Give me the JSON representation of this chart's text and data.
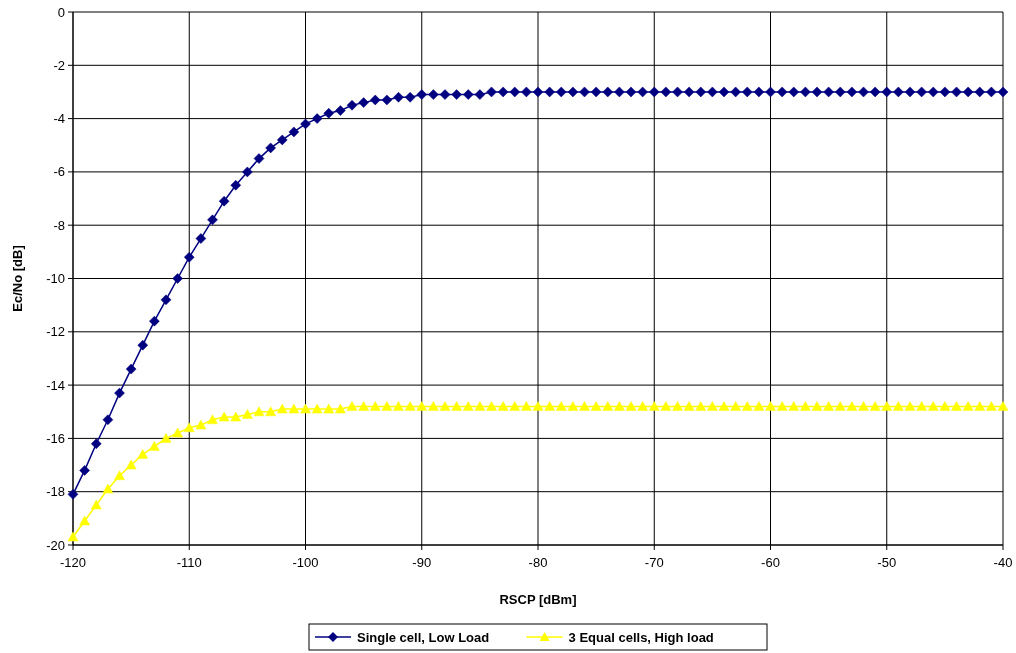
{
  "chart_data": {
    "type": "line",
    "xlabel": "RSCP [dBm]",
    "ylabel": "Ec/No [dB]",
    "x": [
      -120,
      -119,
      -118,
      -117,
      -116,
      -115,
      -114,
      -113,
      -112,
      -111,
      -110,
      -109,
      -108,
      -107,
      -106,
      -105,
      -104,
      -103,
      -102,
      -101,
      -100,
      -99,
      -98,
      -97,
      -96,
      -95,
      -94,
      -93,
      -92,
      -91,
      -90,
      -89,
      -88,
      -87,
      -86,
      -85,
      -84,
      -83,
      -82,
      -81,
      -80,
      -79,
      -78,
      -77,
      -76,
      -75,
      -74,
      -73,
      -72,
      -71,
      -70,
      -69,
      -68,
      -67,
      -66,
      -65,
      -64,
      -63,
      -62,
      -61,
      -60,
      -59,
      -58,
      -57,
      -56,
      -55,
      -54,
      -53,
      -52,
      -51,
      -50,
      -49,
      -48,
      -47,
      -46,
      -45,
      -44,
      -43,
      -42,
      -41,
      -40
    ],
    "series": [
      {
        "name": "Single cell, Low Load",
        "color": "#000080",
        "marker": "diamond",
        "values": [
          -18.1,
          -17.2,
          -16.2,
          -15.3,
          -14.3,
          -13.4,
          -12.5,
          -11.6,
          -10.8,
          -10.0,
          -9.2,
          -8.5,
          -7.8,
          -7.1,
          -6.5,
          -6.0,
          -5.5,
          -5.1,
          -4.8,
          -4.5,
          -4.2,
          -4.0,
          -3.8,
          -3.7,
          -3.5,
          -3.4,
          -3.3,
          -3.3,
          -3.2,
          -3.2,
          -3.1,
          -3.1,
          -3.1,
          -3.1,
          -3.1,
          -3.1,
          -3,
          -3,
          -3,
          -3,
          -3,
          -3,
          -3,
          -3,
          -3,
          -3,
          -3,
          -3,
          -3,
          -3,
          -3,
          -3,
          -3,
          -3,
          -3,
          -3,
          -3,
          -3,
          -3,
          -3,
          -3,
          -3,
          -3,
          -3,
          -3,
          -3,
          -3,
          -3,
          -3,
          -3,
          -3,
          -3,
          -3,
          -3,
          -3,
          -3,
          -3,
          -3,
          -3,
          -3,
          -3
        ]
      },
      {
        "name": "3 Equal cells, High load",
        "color": "#ffff00",
        "marker": "triangle",
        "values": [
          -19.7,
          -19.1,
          -18.5,
          -17.9,
          -17.4,
          -17.0,
          -16.6,
          -16.3,
          -16.0,
          -15.8,
          -15.6,
          -15.5,
          -15.3,
          -15.2,
          -15.2,
          -15.1,
          -15.0,
          -15.0,
          -14.9,
          -14.9,
          -14.9,
          -14.9,
          -14.9,
          -14.9,
          -14.8,
          -14.8,
          -14.8,
          -14.8,
          -14.8,
          -14.8,
          -14.8,
          -14.8,
          -14.8,
          -14.8,
          -14.8,
          -14.8,
          -14.8,
          -14.8,
          -14.8,
          -14.8,
          -14.8,
          -14.8,
          -14.8,
          -14.8,
          -14.8,
          -14.8,
          -14.8,
          -14.8,
          -14.8,
          -14.8,
          -14.8,
          -14.8,
          -14.8,
          -14.8,
          -14.8,
          -14.8,
          -14.8,
          -14.8,
          -14.8,
          -14.8,
          -14.8,
          -14.8,
          -14.8,
          -14.8,
          -14.8,
          -14.8,
          -14.8,
          -14.8,
          -14.8,
          -14.8,
          -14.8,
          -14.8,
          -14.8,
          -14.8,
          -14.8,
          -14.8,
          -14.8,
          -14.8,
          -14.8,
          -14.8,
          -14.8
        ]
      }
    ],
    "xlim": [
      -120,
      -40
    ],
    "xticks": [
      -120,
      -110,
      -100,
      -90,
      -80,
      -70,
      -60,
      -50,
      -40
    ],
    "ylim": [
      -20,
      0
    ],
    "yticks": [
      -20,
      -18,
      -16,
      -14,
      -12,
      -10,
      -8,
      -6,
      -4,
      -2,
      0
    ],
    "grid": true,
    "legend": "bottom",
    "line_style": "solid"
  }
}
